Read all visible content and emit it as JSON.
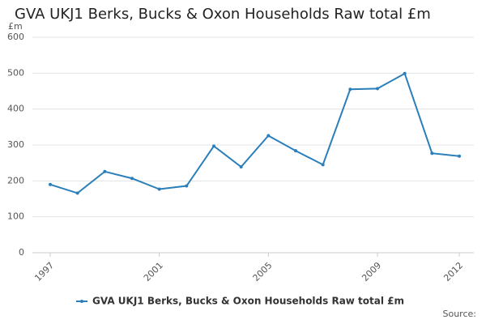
{
  "chart_data": {
    "type": "line",
    "title": "GVA UKJ1 Berks, Bucks & Oxon Households Raw total £m",
    "y_unit": "£m",
    "source": "Source:",
    "x": [
      1997,
      1998,
      1999,
      2000,
      2001,
      2002,
      2003,
      2004,
      2005,
      2006,
      2007,
      2008,
      2009,
      2010,
      2011,
      2012
    ],
    "series": [
      {
        "name": "GVA UKJ1 Berks, Bucks & Oxon Households Raw total £m",
        "color": "#2a7fba",
        "values": [
          190,
          166,
          226,
          207,
          177,
          186,
          297,
          239,
          326,
          284,
          245,
          455,
          457,
          499,
          277,
          269
        ]
      }
    ],
    "xlim": [
      1997,
      2012
    ],
    "xticks": [
      1997,
      2001,
      2005,
      2009,
      2012
    ],
    "ylim": [
      0,
      600
    ],
    "yticks": [
      0,
      100,
      200,
      300,
      400,
      500,
      600
    ],
    "grid": true
  }
}
